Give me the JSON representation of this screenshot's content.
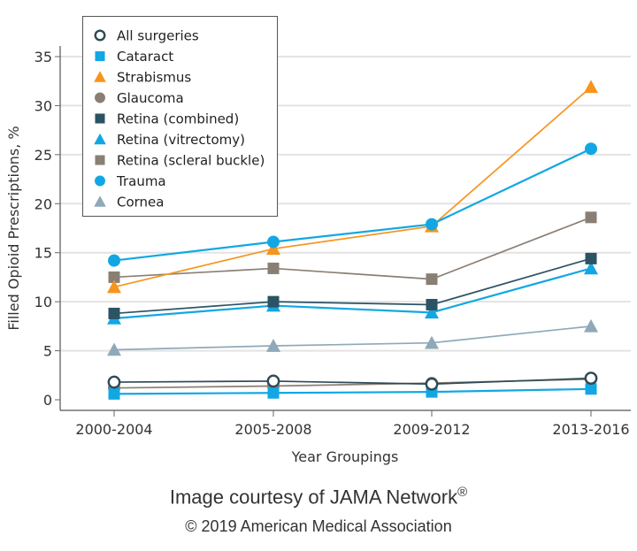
{
  "chart_data": {
    "type": "line",
    "title": "",
    "xlabel": "Year Groupings",
    "ylabel": "Filled Opioid Prescriptions, %",
    "categories": [
      "2000-2004",
      "2005-2008",
      "2009-2012",
      "2013-2016"
    ],
    "ylim": [
      0,
      35
    ],
    "yticks": [
      0,
      5,
      10,
      15,
      20,
      25,
      30,
      35
    ],
    "grid": true,
    "legend_position": "top-left",
    "series": [
      {
        "name": "All surgeries",
        "marker": "circle-open",
        "color": "#2e4a57",
        "values": [
          1.8,
          1.9,
          1.6,
          2.2
        ]
      },
      {
        "name": "Cataract",
        "marker": "square",
        "color": "#12a7e3",
        "values": [
          0.6,
          0.7,
          0.8,
          1.1
        ]
      },
      {
        "name": "Strabismus",
        "marker": "triangle",
        "color": "#f7941d",
        "values": [
          11.5,
          15.4,
          17.7,
          31.9
        ]
      },
      {
        "name": "Glaucoma",
        "marker": "circle",
        "color": "#8a7f74",
        "values": [
          1.2,
          1.4,
          1.7,
          2.1
        ]
      },
      {
        "name": "Retina (combined)",
        "marker": "square",
        "color": "#2c5364",
        "values": [
          8.8,
          10.0,
          9.7,
          14.4
        ]
      },
      {
        "name": "Retina (vitrectomy)",
        "marker": "triangle",
        "color": "#12a7e3",
        "values": [
          8.3,
          9.6,
          8.9,
          13.4
        ]
      },
      {
        "name": "Retina (scleral buckle)",
        "marker": "square",
        "color": "#8a7f74",
        "values": [
          12.5,
          13.4,
          12.3,
          18.6
        ]
      },
      {
        "name": "Trauma",
        "marker": "circle",
        "color": "#12a7e3",
        "values": [
          14.2,
          16.1,
          17.9,
          25.6
        ]
      },
      {
        "name": "Cornea",
        "marker": "triangle",
        "color": "#8fa9b8",
        "values": [
          5.1,
          5.5,
          5.8,
          7.5
        ]
      }
    ]
  },
  "credits": {
    "line1": "Image courtesy of JAMA Network",
    "registered": "®",
    "line2": "© 2019 American Medical Association"
  }
}
